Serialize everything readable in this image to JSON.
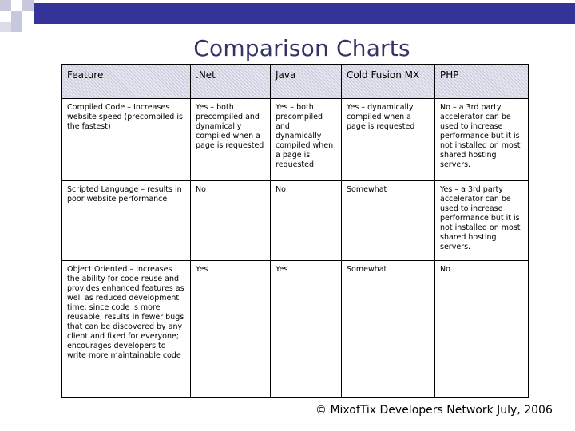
{
  "title": "Comparison Charts",
  "table": {
    "headers": [
      "Feature",
      ".Net",
      "Java",
      "Cold Fusion MX",
      "PHP"
    ],
    "rows": [
      [
        "Compiled Code – Increases website speed (precompiled is the fastest)",
        "Yes – both precompiled and dynamically compiled when a page is requested",
        "Yes – both precompiled and dynamically compiled when a page is requested",
        "Yes – dynamically compiled when a page is requested",
        "No – a 3rd party accelerator can be used to increase performance but it is not installed on most shared hosting servers."
      ],
      [
        "Scripted Language – results in poor website performance",
        "No",
        "No",
        "Somewhat",
        "Yes – a 3rd party accelerator can be used to increase performance but it is not installed on most shared hosting servers."
      ],
      [
        "Object Oriented – Increases the ability for code reuse and provides enhanced features as well as reduced development time; since code is more reusable, results in fewer bugs that can be discovered by any client and fixed for everyone; encourages developers to write more maintainable code",
        "Yes",
        "Yes",
        "Somewhat",
        "No"
      ]
    ]
  },
  "footer": "© MixofTix Developers Network July, 2006",
  "colors": {
    "title": "#333366",
    "header_fill": "#e6e6f0",
    "decor": "#333399"
  }
}
